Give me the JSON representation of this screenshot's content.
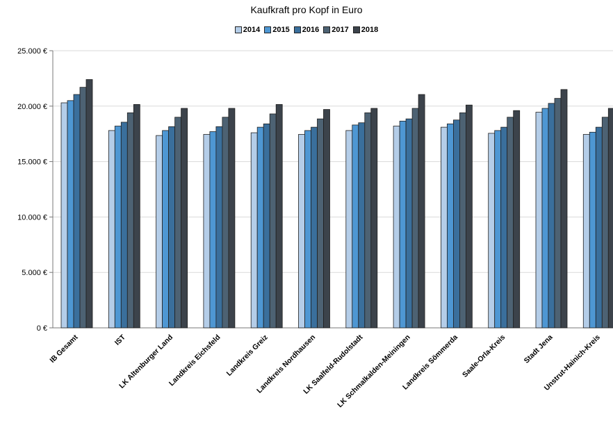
{
  "chart_data": {
    "type": "bar",
    "title": "Kaufkraft pro Kopf in Euro",
    "categories": [
      "IB Gesamt",
      "IST",
      "LK Altenburger Land",
      "Landkreis Eichsfeld",
      "Landkreis Greiz",
      "Landkreis Nordhausen",
      "LK Saalfeld-Rudolstadt",
      "LK Schmalkalden-Meiningen",
      "Landkreis Sömmerda",
      "Saale-Orla-Kreis",
      "Stadt Jena",
      "Unstrut-Hainich-Kreis"
    ],
    "series": [
      {
        "name": "2014",
        "color": "#b4cde8",
        "values": [
          20300,
          17800,
          17350,
          17450,
          17600,
          17450,
          17800,
          18200,
          18100,
          17550,
          19450,
          17450
        ]
      },
      {
        "name": "2015",
        "color": "#4e97d3",
        "values": [
          20500,
          18200,
          17800,
          17700,
          18100,
          17800,
          18300,
          18650,
          18400,
          17800,
          19800,
          17650
        ]
      },
      {
        "name": "2016",
        "color": "#3a6f9c",
        "values": [
          21050,
          18550,
          18150,
          18150,
          18400,
          18100,
          18500,
          18850,
          18750,
          18100,
          20250,
          18100
        ]
      },
      {
        "name": "2017",
        "color": "#4d6273",
        "values": [
          21700,
          19400,
          19000,
          19000,
          19300,
          18850,
          19400,
          19800,
          19400,
          19000,
          20700,
          19000
        ]
      },
      {
        "name": "2018",
        "color": "#3c434b",
        "values": [
          22400,
          20150,
          19800,
          19800,
          20150,
          19700,
          19800,
          21050,
          20100,
          19600,
          21500,
          19800
        ]
      }
    ],
    "y_ticks": [
      "0 €",
      "5.000 €",
      "10.000 €",
      "15.000 €",
      "20.000 €",
      "25.000 €"
    ],
    "ylim": [
      0,
      25000
    ],
    "grid": true,
    "legend_position": "top-center"
  }
}
